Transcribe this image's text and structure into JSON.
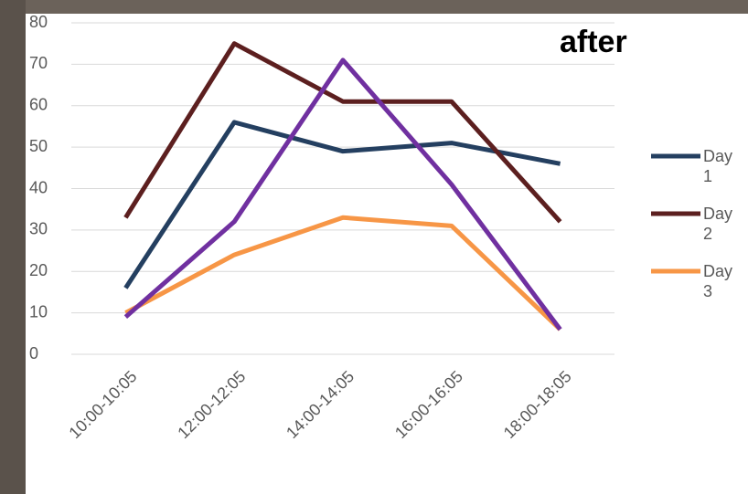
{
  "chart_data": {
    "type": "line",
    "title": "after",
    "categories": [
      "10:00-10:05",
      "12:00-12:05",
      "14:00-14:05",
      "16:00-16:05",
      "18:00-18:05"
    ],
    "series": [
      {
        "name": "Day 1",
        "color": "#243f60",
        "values": [
          16,
          56,
          49,
          51,
          46
        ]
      },
      {
        "name": "Day 2",
        "color": "#5c1f1f",
        "values": [
          33,
          75,
          61,
          61,
          32
        ]
      },
      {
        "name": "Day 3",
        "color": "#f79646",
        "values": [
          10,
          24,
          33,
          31,
          6
        ]
      },
      {
        "color": "#7030a0",
        "values": [
          9,
          32,
          71,
          41,
          6
        ]
      }
    ],
    "ylim": [
      0,
      80
    ],
    "yticks": [
      0,
      10,
      20,
      30,
      40,
      50,
      60,
      70,
      80
    ],
    "grid": true,
    "legend": "right"
  }
}
